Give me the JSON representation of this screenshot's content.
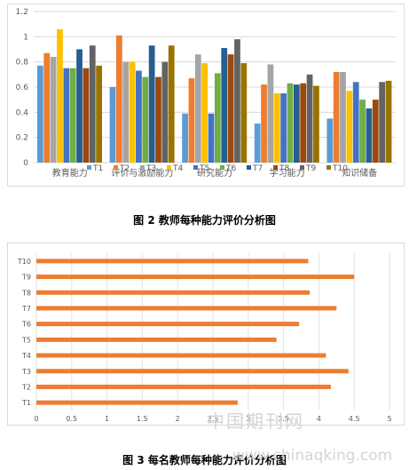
{
  "figure2": {
    "caption": "图 2  教师每种能力评价分析图",
    "chart_data": {
      "type": "bar",
      "title": "",
      "xlabel": "",
      "ylabel": "",
      "ylim": [
        0,
        1.2
      ],
      "yticks": [
        "0",
        "0.2",
        "0.4",
        "0.6",
        "0.8",
        "1",
        "1.2"
      ],
      "grid": true,
      "legend_position": "bottom",
      "categories": [
        "教育能力",
        "评价与激励能力",
        "研究能力",
        "学习能力",
        "知识储备"
      ],
      "series": [
        {
          "name": "T1",
          "color": "#5b9bd5",
          "values": [
            0.77,
            0.6,
            0.39,
            0.31,
            0.35
          ]
        },
        {
          "name": "T2",
          "color": "#ed7d31",
          "values": [
            0.87,
            1.01,
            0.67,
            0.62,
            0.72
          ]
        },
        {
          "name": "T3",
          "color": "#a5a5a5",
          "values": [
            0.84,
            0.8,
            0.86,
            0.78,
            0.72
          ]
        },
        {
          "name": "T4",
          "color": "#ffc000",
          "values": [
            1.06,
            0.8,
            0.79,
            0.55,
            0.57
          ]
        },
        {
          "name": "T5",
          "color": "#4472c4",
          "values": [
            0.75,
            0.73,
            0.39,
            0.55,
            0.64
          ]
        },
        {
          "name": "T6",
          "color": "#70ad47",
          "values": [
            0.75,
            0.68,
            0.71,
            0.63,
            0.5
          ]
        },
        {
          "name": "T7",
          "color": "#255e91",
          "values": [
            0.9,
            0.93,
            0.91,
            0.62,
            0.43
          ]
        },
        {
          "name": "T8",
          "color": "#9e480e",
          "values": [
            0.75,
            0.68,
            0.86,
            0.63,
            0.5
          ]
        },
        {
          "name": "T9",
          "color": "#636363",
          "values": [
            0.93,
            0.8,
            0.98,
            0.7,
            0.64
          ]
        },
        {
          "name": "T10",
          "color": "#997300",
          "values": [
            0.77,
            0.93,
            0.79,
            0.61,
            0.65
          ]
        }
      ]
    }
  },
  "figure3": {
    "caption": "图 3  每名教师每种能力评价分析图",
    "chart_data": {
      "type": "bar",
      "orientation": "horizontal",
      "title": "",
      "xlabel": "",
      "ylabel": "",
      "xlim": [
        0,
        5
      ],
      "xticks": [
        "0",
        "0.5",
        "1",
        "1.5",
        "2",
        "2.5",
        "3",
        "3.5",
        "4",
        "4.5",
        "5"
      ],
      "grid": true,
      "bar_color": "#ed7d31",
      "categories": [
        "T1",
        "T2",
        "T3",
        "T4",
        "T5",
        "T6",
        "T7",
        "T8",
        "T9",
        "T10"
      ],
      "values": [
        2.85,
        4.17,
        4.42,
        4.1,
        3.4,
        3.72,
        4.25,
        3.87,
        4.5,
        3.85
      ]
    }
  },
  "watermark": {
    "line1": "中国期刊网",
    "line2": "www.chinaqking.com"
  }
}
